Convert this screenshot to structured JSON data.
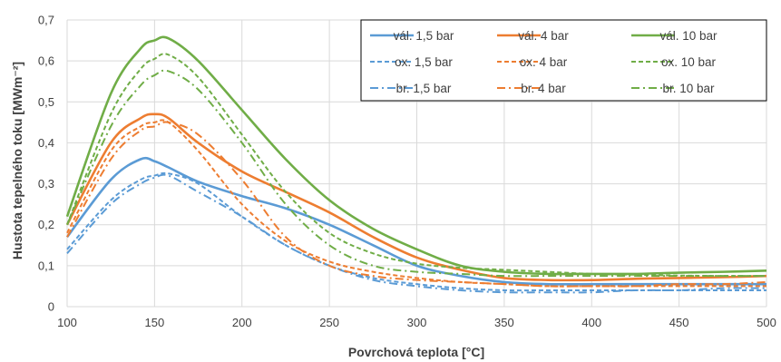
{
  "chart_data": {
    "type": "line",
    "xlabel": "Povrchová teplota [°C]",
    "ylabel": "Hustota tepelného toku [MWm⁻²]",
    "xlim": [
      100,
      500
    ],
    "ylim": [
      0,
      0.7
    ],
    "xticks": [
      "100",
      "150",
      "200",
      "250",
      "300",
      "350",
      "400",
      "450",
      "500"
    ],
    "yticks": [
      "0",
      "0,1",
      "0,2",
      "0,3",
      "0,4",
      "0,5",
      "0,6",
      "0,7"
    ],
    "grid": true,
    "legend_position": "top-right",
    "x": [
      100,
      125,
      142,
      150,
      158,
      175,
      200,
      225,
      250,
      275,
      300,
      325,
      350,
      375,
      400,
      425,
      450,
      475,
      500
    ],
    "series": [
      {
        "name": "vál. 1,5 bar",
        "color": "#5b9bd5",
        "dash": "solid",
        "values": [
          0.17,
          0.31,
          0.36,
          0.355,
          0.34,
          0.305,
          0.27,
          0.24,
          0.2,
          0.15,
          0.1,
          0.075,
          0.06,
          0.055,
          0.055,
          0.055,
          0.055,
          0.055,
          0.055
        ]
      },
      {
        "name": "vál. 4 bar",
        "color": "#ed7d31",
        "dash": "solid",
        "values": [
          0.2,
          0.4,
          0.46,
          0.47,
          0.46,
          0.4,
          0.33,
          0.28,
          0.23,
          0.17,
          0.12,
          0.09,
          0.07,
          0.065,
          0.065,
          0.068,
          0.07,
          0.072,
          0.075
        ]
      },
      {
        "name": "vál. 10 bar",
        "color": "#70ad47",
        "dash": "solid",
        "values": [
          0.22,
          0.52,
          0.63,
          0.65,
          0.655,
          0.6,
          0.48,
          0.36,
          0.26,
          0.19,
          0.14,
          0.1,
          0.085,
          0.08,
          0.08,
          0.08,
          0.083,
          0.085,
          0.088
        ]
      },
      {
        "name": "ox. 1,5 bar",
        "color": "#5b9bd5",
        "dash": "dash",
        "values": [
          0.14,
          0.26,
          0.31,
          0.32,
          0.325,
          0.3,
          0.22,
          0.15,
          0.1,
          0.07,
          0.055,
          0.045,
          0.04,
          0.04,
          0.04,
          0.04,
          0.04,
          0.04,
          0.04
        ]
      },
      {
        "name": "ox. 4 bar",
        "color": "#ed7d31",
        "dash": "dash",
        "values": [
          0.18,
          0.38,
          0.44,
          0.45,
          0.45,
          0.38,
          0.25,
          0.16,
          0.11,
          0.085,
          0.07,
          0.06,
          0.055,
          0.05,
          0.05,
          0.05,
          0.05,
          0.05,
          0.05
        ]
      },
      {
        "name": "ox. 10 bar",
        "color": "#70ad47",
        "dash": "dash",
        "values": [
          0.2,
          0.47,
          0.58,
          0.605,
          0.615,
          0.56,
          0.42,
          0.28,
          0.18,
          0.13,
          0.105,
          0.095,
          0.09,
          0.085,
          0.08,
          0.078,
          0.076,
          0.075,
          0.075
        ]
      },
      {
        "name": "br. 1,5 bar",
        "color": "#5b9bd5",
        "dash": "dashdot",
        "values": [
          0.13,
          0.25,
          0.3,
          0.315,
          0.32,
          0.28,
          0.22,
          0.15,
          0.1,
          0.065,
          0.05,
          0.04,
          0.035,
          0.035,
          0.035,
          0.04,
          0.04,
          0.045,
          0.045
        ]
      },
      {
        "name": "br. 4 bar",
        "color": "#ed7d31",
        "dash": "dashdot",
        "values": [
          0.17,
          0.36,
          0.43,
          0.44,
          0.45,
          0.42,
          0.31,
          0.17,
          0.1,
          0.075,
          0.065,
          0.06,
          0.055,
          0.05,
          0.05,
          0.05,
          0.055,
          0.055,
          0.06
        ]
      },
      {
        "name": "br. 10 bar",
        "color": "#70ad47",
        "dash": "dashdot",
        "values": [
          0.2,
          0.44,
          0.54,
          0.565,
          0.575,
          0.53,
          0.4,
          0.25,
          0.15,
          0.1,
          0.085,
          0.08,
          0.075,
          0.075,
          0.075,
          0.075,
          0.075,
          0.075,
          0.075
        ]
      }
    ]
  }
}
